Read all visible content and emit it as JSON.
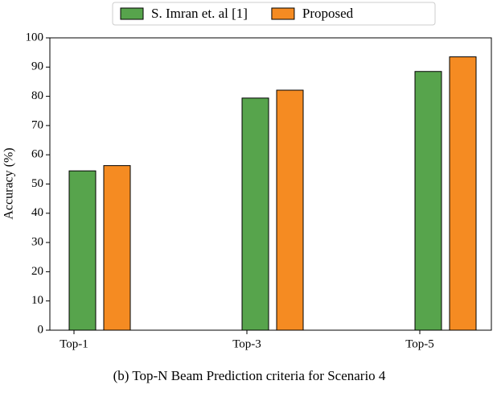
{
  "chart_data": {
    "type": "bar",
    "caption": "(b) Top-N Beam Prediction criteria for Scenario 4",
    "y_label": "Accuracy (%)",
    "categories": [
      "Top-1",
      "Top-3",
      "Top-5"
    ],
    "series": [
      {
        "name": "S. Imran et. al [1]",
        "color": "#57a44c",
        "values": [
          54.5,
          79.4,
          88.5
        ]
      },
      {
        "name": "Proposed",
        "color": "#f58b22",
        "values": [
          56.3,
          82.1,
          93.5
        ]
      }
    ],
    "ylim": [
      0,
      100
    ],
    "yticks": [
      0,
      10,
      20,
      30,
      40,
      50,
      60,
      70,
      80,
      90,
      100
    ],
    "grid": false,
    "legend": "top"
  }
}
